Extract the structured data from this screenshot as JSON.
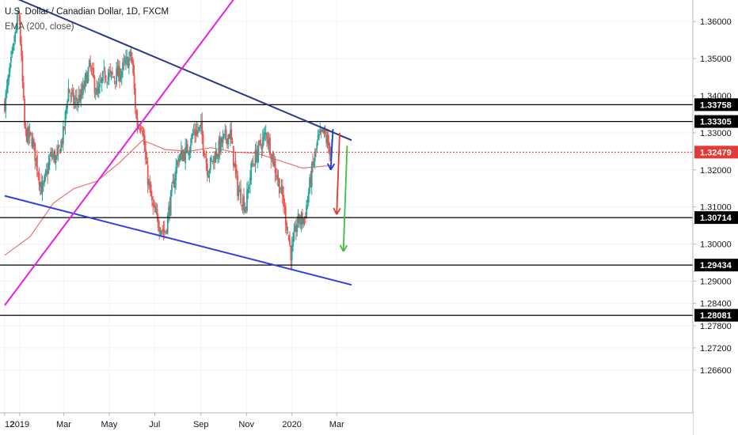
{
  "header": {
    "title": "U.S. Dollar / Canadian Dollar, 1D, FXCM",
    "indicator": "EMA (200, close)"
  },
  "colors": {
    "bull": "#26a69a",
    "bear": "#ef5350",
    "ema": "#e57373",
    "upper_trend": "#2b3a86",
    "lower_trend": "#2f3fdc",
    "channel": "#e91ee6",
    "level": "#000000",
    "current": "#e53935",
    "arrow_blue": "#1f37e0",
    "arrow_red": "#e53935",
    "arrow_green": "#3cc13c"
  },
  "chart_data": {
    "type": "candlestick",
    "title": "U.S. Dollar / Canadian Dollar, 1D, FXCM",
    "indicator": "EMA (200, close)",
    "xlabel": "",
    "ylabel": "",
    "ylim": [
      1.2545,
      1.3658
    ],
    "grid": true,
    "x_tick_labels": [
      "12",
      "2019",
      "Mar",
      "May",
      "Jul",
      "Sep",
      "Nov",
      "2020",
      "Mar"
    ],
    "y_tick_labels": [
      "1.36000",
      "1.35000",
      "1.34000",
      "1.33000",
      "1.32000",
      "1.31000",
      "1.30000",
      "1.29000",
      "1.28400",
      "1.27800",
      "1.27200",
      "1.26600"
    ],
    "y_tick_values": [
      1.36,
      1.35,
      1.34,
      1.33,
      1.32,
      1.31,
      1.3,
      1.29,
      1.284,
      1.278,
      1.272,
      1.266
    ],
    "horizontal_levels": [
      {
        "label": "1.33758",
        "value": 1.33758
      },
      {
        "label": "1.33305",
        "value": 1.33305
      },
      {
        "label": "1.30714",
        "value": 1.30714
      },
      {
        "label": "1.29434",
        "value": 1.29434
      },
      {
        "label": "1.28081",
        "value": 1.28081
      }
    ],
    "current_price": {
      "label": "1.32479",
      "value": 1.32479
    },
    "close_path": [
      [
        "2018-12-12",
        1.338
      ],
      [
        "2018-12-20",
        1.348
      ],
      [
        "2018-12-31",
        1.363
      ],
      [
        "2019-01-08",
        1.33
      ],
      [
        "2019-01-18",
        1.328
      ],
      [
        "2019-01-31",
        1.314
      ],
      [
        "2019-02-05",
        1.318
      ],
      [
        "2019-02-12",
        1.324
      ],
      [
        "2019-02-20",
        1.323
      ],
      [
        "2019-03-01",
        1.33
      ],
      [
        "2019-03-07",
        1.342
      ],
      [
        "2019-03-15",
        1.338
      ],
      [
        "2019-03-25",
        1.34
      ],
      [
        "2019-04-05",
        1.348
      ],
      [
        "2019-04-15",
        1.34
      ],
      [
        "2019-04-25",
        1.346
      ],
      [
        "2019-05-05",
        1.345
      ],
      [
        "2019-05-15",
        1.346
      ],
      [
        "2019-05-31",
        1.351
      ],
      [
        "2019-06-07",
        1.332
      ],
      [
        "2019-06-14",
        1.333
      ],
      [
        "2019-06-20",
        1.32
      ],
      [
        "2019-06-28",
        1.31
      ],
      [
        "2019-07-05",
        1.306
      ],
      [
        "2019-07-15",
        1.303
      ],
      [
        "2019-07-25",
        1.315
      ],
      [
        "2019-08-01",
        1.323
      ],
      [
        "2019-08-13",
        1.325
      ],
      [
        "2019-08-22",
        1.33
      ],
      [
        "2019-09-01",
        1.331
      ],
      [
        "2019-09-10",
        1.32
      ],
      [
        "2019-09-20",
        1.324
      ],
      [
        "2019-10-01",
        1.328
      ],
      [
        "2019-10-10",
        1.33
      ],
      [
        "2019-10-20",
        1.315
      ],
      [
        "2019-10-31",
        1.31
      ],
      [
        "2019-11-08",
        1.321
      ],
      [
        "2019-11-18",
        1.326
      ],
      [
        "2019-11-28",
        1.33
      ],
      [
        "2019-12-10",
        1.32
      ],
      [
        "2019-12-20",
        1.312
      ],
      [
        "2019-12-31",
        1.297
      ],
      [
        "2020-01-08",
        1.306
      ],
      [
        "2020-01-18",
        1.307
      ],
      [
        "2020-01-28",
        1.32
      ],
      [
        "2020-02-05",
        1.328
      ],
      [
        "2020-02-13",
        1.33
      ],
      [
        "2020-02-20",
        1.326
      ],
      [
        "2020-02-24",
        1.3248
      ]
    ],
    "ema_path": [
      [
        "2018-12-12",
        1.297
      ],
      [
        "2019-01-15",
        1.302
      ],
      [
        "2019-02-15",
        1.311
      ],
      [
        "2019-03-15",
        1.315
      ],
      [
        "2019-04-15",
        1.317
      ],
      [
        "2019-05-15",
        1.322
      ],
      [
        "2019-06-15",
        1.328
      ],
      [
        "2019-07-15",
        1.3255
      ],
      [
        "2019-08-15",
        1.325
      ],
      [
        "2019-09-15",
        1.326
      ],
      [
        "2019-10-15",
        1.3248
      ],
      [
        "2019-11-15",
        1.3245
      ],
      [
        "2019-12-15",
        1.3225
      ],
      [
        "2020-01-15",
        1.3205
      ],
      [
        "2020-02-24",
        1.3212
      ]
    ],
    "trendlines": [
      {
        "name": "upper",
        "points": [
          [
            "2018-12-24",
            1.3665
          ],
          [
            "2020-03-21",
            1.328
          ]
        ]
      },
      {
        "name": "lower",
        "points": [
          [
            "2018-12-12",
            1.313
          ],
          [
            "2020-03-21",
            1.289
          ]
        ]
      },
      {
        "name": "channel",
        "points": [
          [
            "2018-12-12",
            1.2835
          ],
          [
            "2019-10-15",
            1.366
          ]
        ]
      }
    ],
    "arrows": [
      {
        "color": "blue",
        "from": [
          "2020-02-25",
          1.331
        ],
        "to": [
          "2020-02-22",
          1.32
        ]
      },
      {
        "color": "red",
        "from": [
          "2020-03-05",
          1.33
        ],
        "to": [
          "2020-03-01",
          1.308
        ]
      },
      {
        "color": "green",
        "from": [
          "2020-03-15",
          1.3265
        ],
        "to": [
          "2020-03-10",
          1.298
        ]
      }
    ]
  }
}
